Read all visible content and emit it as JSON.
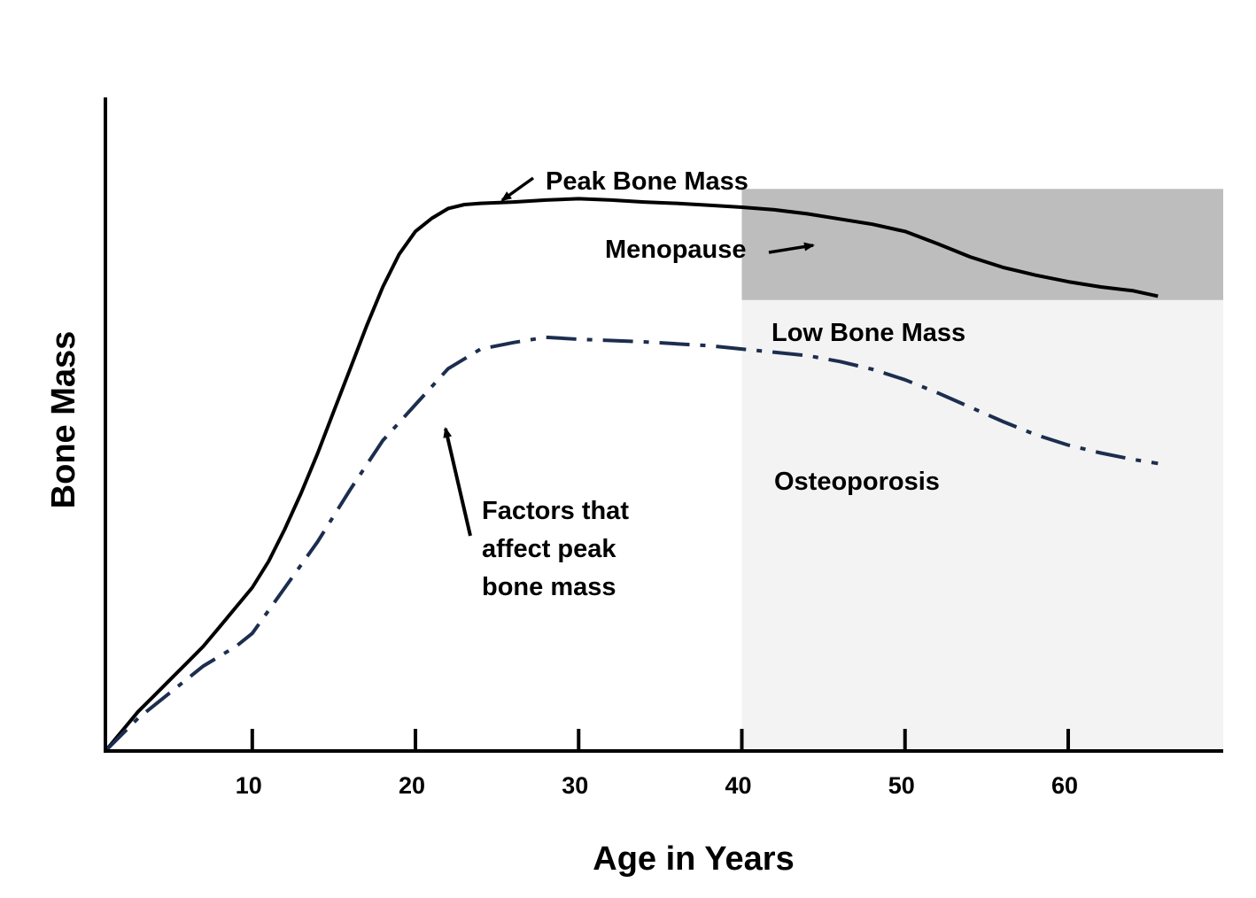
{
  "chart_data": {
    "type": "line",
    "title": "",
    "xlabel": "Age in Years",
    "ylabel": "Bone Mass",
    "xlim": [
      1,
      69.5
    ],
    "ylim": [
      0,
      100
    ],
    "x_ticks": [
      10,
      20,
      30,
      40,
      50,
      60
    ],
    "grid": false,
    "legend": "none",
    "zones": [
      {
        "name": "Low Bone Mass",
        "x_range": [
          40,
          69.5
        ],
        "y_range": [
          69,
          86
        ],
        "color": "#bebdbe"
      },
      {
        "name": "Osteoporosis",
        "x_range": [
          40,
          69.5
        ],
        "y_range": [
          0,
          69
        ],
        "color": "#f3f3f3"
      }
    ],
    "series": [
      {
        "style": "solid",
        "color": "#000000",
        "x": [
          1,
          2,
          3,
          4,
          5,
          6,
          7,
          8,
          9,
          10,
          11,
          12,
          13,
          14,
          15,
          16,
          17,
          18,
          19,
          20,
          21,
          22,
          23,
          24,
          26,
          28,
          30,
          32,
          34,
          36,
          38,
          40,
          42,
          44,
          46,
          48,
          50,
          52,
          54,
          56,
          58,
          60,
          62,
          64,
          65.5
        ],
        "y": [
          0,
          3,
          6,
          8.5,
          11,
          13.5,
          16,
          19,
          22,
          25,
          29,
          34,
          39.5,
          45.5,
          52,
          58.5,
          65,
          71,
          76,
          79.5,
          81.5,
          83,
          83.6,
          83.8,
          84.0,
          84.3,
          84.5,
          84.3,
          84.0,
          83.8,
          83.5,
          83.2,
          82.8,
          82.2,
          81.4,
          80.6,
          79.5,
          77.6,
          75.6,
          74.0,
          72.8,
          71.8,
          71.0,
          70.4,
          69.6
        ]
      },
      {
        "style": "dash-dot",
        "color": "#1c2e4f",
        "x": [
          1,
          3,
          5,
          7,
          9,
          10,
          12,
          14,
          16,
          18,
          20,
          22,
          24,
          26,
          28,
          30,
          32,
          34,
          36,
          38,
          40,
          42,
          44,
          46,
          48,
          50,
          52,
          54,
          56,
          58,
          60,
          62,
          64,
          65.5
        ],
        "y": [
          0,
          5,
          9,
          13,
          16,
          18,
          25,
          32,
          40,
          47.5,
          53,
          58.5,
          61.5,
          62.5,
          63.3,
          63.0,
          62.8,
          62.6,
          62.3,
          62.0,
          61.5,
          61.0,
          60.5,
          59.6,
          58.4,
          56.8,
          54.8,
          52.6,
          50.4,
          48.4,
          46.8,
          45.6,
          44.6,
          44.0
        ]
      }
    ],
    "annotations": [
      {
        "text": "Peak Bone Mass"
      },
      {
        "text": "Menopause"
      },
      {
        "text": "Low Bone Mass"
      },
      {
        "text": "Osteoporosis"
      },
      {
        "lines": [
          "Factors that",
          "affect peak",
          "bone mass"
        ]
      }
    ]
  }
}
